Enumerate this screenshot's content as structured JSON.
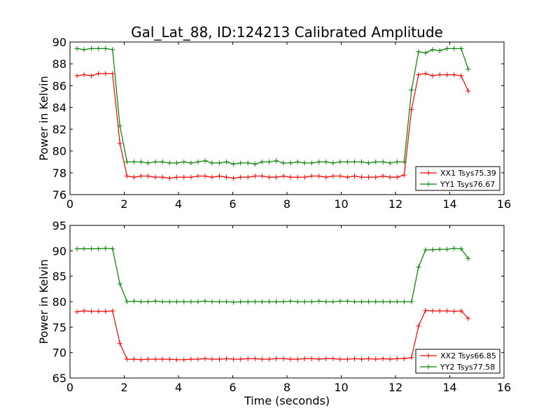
{
  "title": "Gal_Lat_88, ID:124213 Calibrated Amplitude",
  "xlabel": "Time (seconds)",
  "colors": {
    "red": "#ff0000",
    "green": "#008000"
  },
  "chart_data": [
    {
      "type": "line",
      "title": "Gal_Lat_88, ID:124213 Calibrated Amplitude",
      "ylabel": "Power in Kelvin",
      "xlabel": "",
      "xlim": [
        0,
        16
      ],
      "ylim": [
        76,
        90
      ],
      "xticks": [
        0,
        2,
        4,
        6,
        8,
        10,
        12,
        14,
        16
      ],
      "yticks": [
        76,
        78,
        80,
        82,
        84,
        86,
        88,
        90
      ],
      "grid": false,
      "legend_position": "bottom-right",
      "x": [
        0.26,
        0.52,
        0.79,
        1.05,
        1.31,
        1.57,
        1.84,
        2.1,
        2.36,
        2.62,
        2.88,
        3.15,
        3.41,
        3.67,
        3.93,
        4.2,
        4.46,
        4.72,
        4.98,
        5.24,
        5.51,
        5.77,
        6.03,
        6.29,
        6.56,
        6.82,
        7.08,
        7.34,
        7.6,
        7.87,
        8.13,
        8.39,
        8.65,
        8.91,
        9.18,
        9.44,
        9.7,
        9.96,
        10.23,
        10.49,
        10.75,
        11.01,
        11.27,
        11.54,
        11.8,
        12.06,
        12.32,
        12.59,
        12.85,
        13.11,
        13.37,
        13.63,
        13.9,
        14.16,
        14.42,
        14.68
      ],
      "series": [
        {
          "name": "XX1 Tsys75.39",
          "color": "#ff0000",
          "values": [
            86.9,
            87.0,
            86.9,
            87.1,
            87.1,
            87.1,
            80.7,
            77.7,
            77.6,
            77.7,
            77.7,
            77.6,
            77.6,
            77.5,
            77.6,
            77.6,
            77.6,
            77.7,
            77.7,
            77.6,
            77.7,
            77.6,
            77.5,
            77.6,
            77.6,
            77.7,
            77.7,
            77.6,
            77.6,
            77.7,
            77.6,
            77.6,
            77.6,
            77.7,
            77.7,
            77.6,
            77.7,
            77.7,
            77.6,
            77.7,
            77.6,
            77.6,
            77.6,
            77.7,
            77.6,
            77.6,
            77.8,
            83.8,
            87.0,
            87.1,
            86.9,
            87.0,
            87.0,
            87.0,
            86.9,
            85.5
          ]
        },
        {
          "name": "YY1 Tsys76.67",
          "color": "#008000",
          "values": [
            89.4,
            89.3,
            89.4,
            89.4,
            89.4,
            89.3,
            82.3,
            79.0,
            79.0,
            79.0,
            78.9,
            79.0,
            79.0,
            78.9,
            78.9,
            79.0,
            78.9,
            79.0,
            79.1,
            78.9,
            78.9,
            79.0,
            78.8,
            78.9,
            78.9,
            78.8,
            79.0,
            79.0,
            79.1,
            78.9,
            78.9,
            79.0,
            78.9,
            78.9,
            79.0,
            79.0,
            78.9,
            79.0,
            79.0,
            79.0,
            79.0,
            78.9,
            79.0,
            79.0,
            78.9,
            79.0,
            79.0,
            85.6,
            89.1,
            89.0,
            89.3,
            89.2,
            89.4,
            89.4,
            89.4,
            87.5
          ]
        }
      ]
    },
    {
      "type": "line",
      "title": "",
      "ylabel": "Power in Kelvin",
      "xlabel": "Time (seconds)",
      "xlim": [
        0,
        16
      ],
      "ylim": [
        65,
        95
      ],
      "xticks": [
        0,
        2,
        4,
        6,
        8,
        10,
        12,
        14,
        16
      ],
      "yticks": [
        65,
        70,
        75,
        80,
        85,
        90,
        95
      ],
      "grid": false,
      "legend_position": "bottom-right",
      "x": [
        0.26,
        0.52,
        0.79,
        1.05,
        1.31,
        1.57,
        1.84,
        2.1,
        2.36,
        2.62,
        2.88,
        3.15,
        3.41,
        3.67,
        3.93,
        4.2,
        4.46,
        4.72,
        4.98,
        5.24,
        5.51,
        5.77,
        6.03,
        6.29,
        6.56,
        6.82,
        7.08,
        7.34,
        7.6,
        7.87,
        8.13,
        8.39,
        8.65,
        8.91,
        9.18,
        9.44,
        9.7,
        9.96,
        10.23,
        10.49,
        10.75,
        11.01,
        11.27,
        11.54,
        11.8,
        12.06,
        12.32,
        12.59,
        12.85,
        13.11,
        13.37,
        13.63,
        13.9,
        14.16,
        14.42,
        14.68
      ],
      "series": [
        {
          "name": "XX2 Tsys66.85",
          "color": "#ff0000",
          "values": [
            78.0,
            78.2,
            78.1,
            78.1,
            78.1,
            78.2,
            71.8,
            68.7,
            68.7,
            68.6,
            68.7,
            68.7,
            68.7,
            68.7,
            68.6,
            68.6,
            68.7,
            68.7,
            68.8,
            68.7,
            68.7,
            68.8,
            68.7,
            68.7,
            68.8,
            68.8,
            68.7,
            68.7,
            68.8,
            68.8,
            68.7,
            68.7,
            68.8,
            68.8,
            68.7,
            68.8,
            68.8,
            68.7,
            68.7,
            68.8,
            68.7,
            68.8,
            68.7,
            68.8,
            68.7,
            68.8,
            68.8,
            69.0,
            75.2,
            78.3,
            78.2,
            78.2,
            78.2,
            78.1,
            78.2,
            76.7
          ]
        },
        {
          "name": "YY2 Tsys77.58",
          "color": "#008000",
          "values": [
            90.4,
            90.4,
            90.4,
            90.4,
            90.5,
            90.4,
            83.5,
            80.0,
            80.1,
            80.0,
            80.0,
            80.1,
            80.0,
            80.0,
            80.0,
            80.0,
            80.0,
            80.0,
            80.1,
            80.0,
            80.0,
            80.0,
            79.9,
            80.0,
            80.0,
            80.0,
            80.0,
            80.0,
            80.0,
            80.0,
            80.1,
            80.0,
            80.0,
            80.0,
            80.1,
            80.0,
            80.0,
            80.1,
            80.1,
            80.0,
            80.0,
            80.0,
            80.0,
            80.0,
            80.0,
            80.0,
            80.0,
            80.0,
            86.8,
            90.2,
            90.2,
            90.3,
            90.3,
            90.5,
            90.4,
            88.5
          ]
        }
      ]
    }
  ]
}
